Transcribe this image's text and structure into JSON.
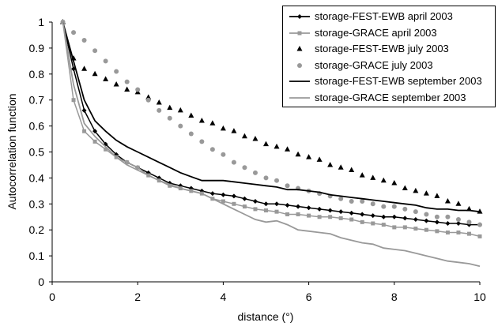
{
  "chart_data": {
    "type": "line",
    "title": "",
    "xlabel": "distance (°)",
    "ylabel": "Autocorrelation function",
    "xlim": [
      0,
      10
    ],
    "ylim": [
      0,
      1
    ],
    "xticks": [
      0,
      2,
      4,
      6,
      8,
      10
    ],
    "yticks": [
      0,
      0.1,
      0.2,
      0.3,
      0.4,
      0.5,
      0.6,
      0.7,
      0.8,
      0.9,
      1
    ],
    "xtick_labels": [
      "0",
      "2",
      "4",
      "6",
      "8",
      "10"
    ],
    "ytick_labels": [
      "0",
      "0.1",
      "0.2",
      "0.3",
      "0.4",
      "0.5",
      "0.6",
      "0.7",
      "0.8",
      "0.9",
      "1"
    ],
    "grid": false,
    "legend_position": "top-right",
    "series": [
      {
        "name": "storage-FEST-EWB april 2003",
        "color": "#000000",
        "style": "line-diamond",
        "x": [
          0.25,
          0.5,
          0.75,
          1.0,
          1.25,
          1.5,
          1.75,
          2.0,
          2.25,
          2.5,
          2.75,
          3.0,
          3.25,
          3.5,
          3.75,
          4.0,
          4.25,
          4.5,
          4.75,
          5.0,
          5.25,
          5.5,
          5.75,
          6.0,
          6.25,
          6.5,
          6.75,
          7.0,
          7.25,
          7.5,
          7.75,
          8.0,
          8.25,
          8.5,
          8.75,
          9.0,
          9.25,
          9.5,
          9.75,
          10.0
        ],
        "values": [
          1.0,
          0.82,
          0.66,
          0.58,
          0.53,
          0.49,
          0.46,
          0.44,
          0.42,
          0.4,
          0.38,
          0.37,
          0.36,
          0.35,
          0.34,
          0.335,
          0.33,
          0.32,
          0.31,
          0.3,
          0.3,
          0.295,
          0.29,
          0.285,
          0.28,
          0.275,
          0.27,
          0.265,
          0.26,
          0.255,
          0.25,
          0.25,
          0.245,
          0.24,
          0.235,
          0.23,
          0.225,
          0.225,
          0.22,
          0.22
        ]
      },
      {
        "name": "storage-GRACE april 2003",
        "color": "#999999",
        "style": "line-square",
        "x": [
          0.25,
          0.5,
          0.75,
          1.0,
          1.25,
          1.5,
          1.75,
          2.0,
          2.25,
          2.5,
          2.75,
          3.0,
          3.25,
          3.5,
          3.75,
          4.0,
          4.25,
          4.5,
          4.75,
          5.0,
          5.25,
          5.5,
          5.75,
          6.0,
          6.25,
          6.5,
          6.75,
          7.0,
          7.25,
          7.5,
          7.75,
          8.0,
          8.25,
          8.5,
          8.75,
          9.0,
          9.25,
          9.5,
          9.75,
          10.0
        ],
        "values": [
          1.0,
          0.7,
          0.58,
          0.54,
          0.51,
          0.48,
          0.46,
          0.44,
          0.41,
          0.39,
          0.37,
          0.36,
          0.35,
          0.34,
          0.32,
          0.31,
          0.3,
          0.29,
          0.28,
          0.275,
          0.27,
          0.26,
          0.26,
          0.255,
          0.25,
          0.25,
          0.245,
          0.24,
          0.23,
          0.225,
          0.22,
          0.21,
          0.21,
          0.205,
          0.2,
          0.195,
          0.19,
          0.19,
          0.185,
          0.175
        ]
      },
      {
        "name": "storage-FEST-EWB july 2003",
        "color": "#000000",
        "style": "triangle",
        "x": [
          0.25,
          0.5,
          0.75,
          1.0,
          1.25,
          1.5,
          1.75,
          2.0,
          2.25,
          2.5,
          2.75,
          3.0,
          3.25,
          3.5,
          3.75,
          4.0,
          4.25,
          4.5,
          4.75,
          5.0,
          5.25,
          5.5,
          5.75,
          6.0,
          6.25,
          6.5,
          6.75,
          7.0,
          7.25,
          7.5,
          7.75,
          8.0,
          8.25,
          8.5,
          8.75,
          9.0,
          9.25,
          9.5,
          9.75,
          10.0
        ],
        "values": [
          1.0,
          0.86,
          0.82,
          0.8,
          0.78,
          0.76,
          0.74,
          0.73,
          0.71,
          0.69,
          0.67,
          0.66,
          0.64,
          0.62,
          0.61,
          0.59,
          0.58,
          0.56,
          0.55,
          0.53,
          0.52,
          0.51,
          0.49,
          0.48,
          0.47,
          0.45,
          0.44,
          0.43,
          0.41,
          0.4,
          0.39,
          0.38,
          0.36,
          0.35,
          0.34,
          0.33,
          0.31,
          0.3,
          0.28,
          0.27
        ]
      },
      {
        "name": "storage-GRACE july 2003",
        "color": "#999999",
        "style": "dot",
        "x": [
          0.25,
          0.5,
          0.75,
          1.0,
          1.25,
          1.5,
          1.75,
          2.0,
          2.25,
          2.5,
          2.75,
          3.0,
          3.25,
          3.5,
          3.75,
          4.0,
          4.25,
          4.5,
          4.75,
          5.0,
          5.25,
          5.5,
          5.75,
          6.0,
          6.25,
          6.5,
          6.75,
          7.0,
          7.25,
          7.5,
          7.75,
          8.0,
          8.25,
          8.5,
          8.75,
          9.0,
          9.25,
          9.5,
          9.75,
          10.0
        ],
        "values": [
          1.0,
          0.96,
          0.93,
          0.89,
          0.85,
          0.81,
          0.77,
          0.74,
          0.7,
          0.66,
          0.63,
          0.6,
          0.57,
          0.54,
          0.51,
          0.49,
          0.46,
          0.44,
          0.42,
          0.4,
          0.39,
          0.37,
          0.36,
          0.35,
          0.34,
          0.33,
          0.32,
          0.31,
          0.31,
          0.3,
          0.29,
          0.29,
          0.28,
          0.27,
          0.26,
          0.25,
          0.25,
          0.24,
          0.23,
          0.22
        ]
      },
      {
        "name": "storage-FEST-EWB september 2003",
        "color": "#000000",
        "style": "line",
        "x": [
          0.25,
          0.5,
          0.75,
          1.0,
          1.25,
          1.5,
          1.75,
          2.0,
          2.25,
          2.5,
          2.75,
          3.0,
          3.25,
          3.5,
          3.75,
          4.0,
          4.25,
          4.5,
          4.75,
          5.0,
          5.25,
          5.5,
          5.75,
          6.0,
          6.25,
          6.5,
          6.75,
          7.0,
          7.25,
          7.5,
          7.75,
          8.0,
          8.25,
          8.5,
          8.75,
          9.0,
          9.25,
          9.5,
          9.75,
          10.0
        ],
        "values": [
          1.0,
          0.85,
          0.7,
          0.62,
          0.58,
          0.545,
          0.52,
          0.5,
          0.48,
          0.46,
          0.44,
          0.42,
          0.405,
          0.39,
          0.39,
          0.39,
          0.385,
          0.38,
          0.375,
          0.37,
          0.365,
          0.355,
          0.355,
          0.35,
          0.345,
          0.335,
          0.33,
          0.325,
          0.32,
          0.315,
          0.31,
          0.305,
          0.3,
          0.295,
          0.285,
          0.28,
          0.28,
          0.275,
          0.275,
          0.27
        ]
      },
      {
        "name": "storage-GRACE september 2003",
        "color": "#999999",
        "style": "line",
        "x": [
          0.25,
          0.5,
          0.75,
          1.0,
          1.25,
          1.5,
          1.75,
          2.0,
          2.25,
          2.5,
          2.75,
          3.0,
          3.25,
          3.5,
          3.75,
          4.0,
          4.25,
          4.5,
          4.75,
          5.0,
          5.25,
          5.5,
          5.75,
          6.0,
          6.25,
          6.5,
          6.75,
          7.0,
          7.25,
          7.5,
          7.75,
          8.0,
          8.25,
          8.5,
          8.75,
          9.0,
          9.25,
          9.5,
          9.75,
          10.0
        ],
        "values": [
          1.0,
          0.76,
          0.61,
          0.56,
          0.52,
          0.48,
          0.45,
          0.43,
          0.41,
          0.39,
          0.375,
          0.36,
          0.35,
          0.34,
          0.32,
          0.3,
          0.28,
          0.26,
          0.24,
          0.23,
          0.235,
          0.22,
          0.2,
          0.195,
          0.19,
          0.185,
          0.17,
          0.16,
          0.15,
          0.145,
          0.13,
          0.125,
          0.12,
          0.11,
          0.1,
          0.09,
          0.08,
          0.075,
          0.07,
          0.06
        ]
      }
    ]
  }
}
